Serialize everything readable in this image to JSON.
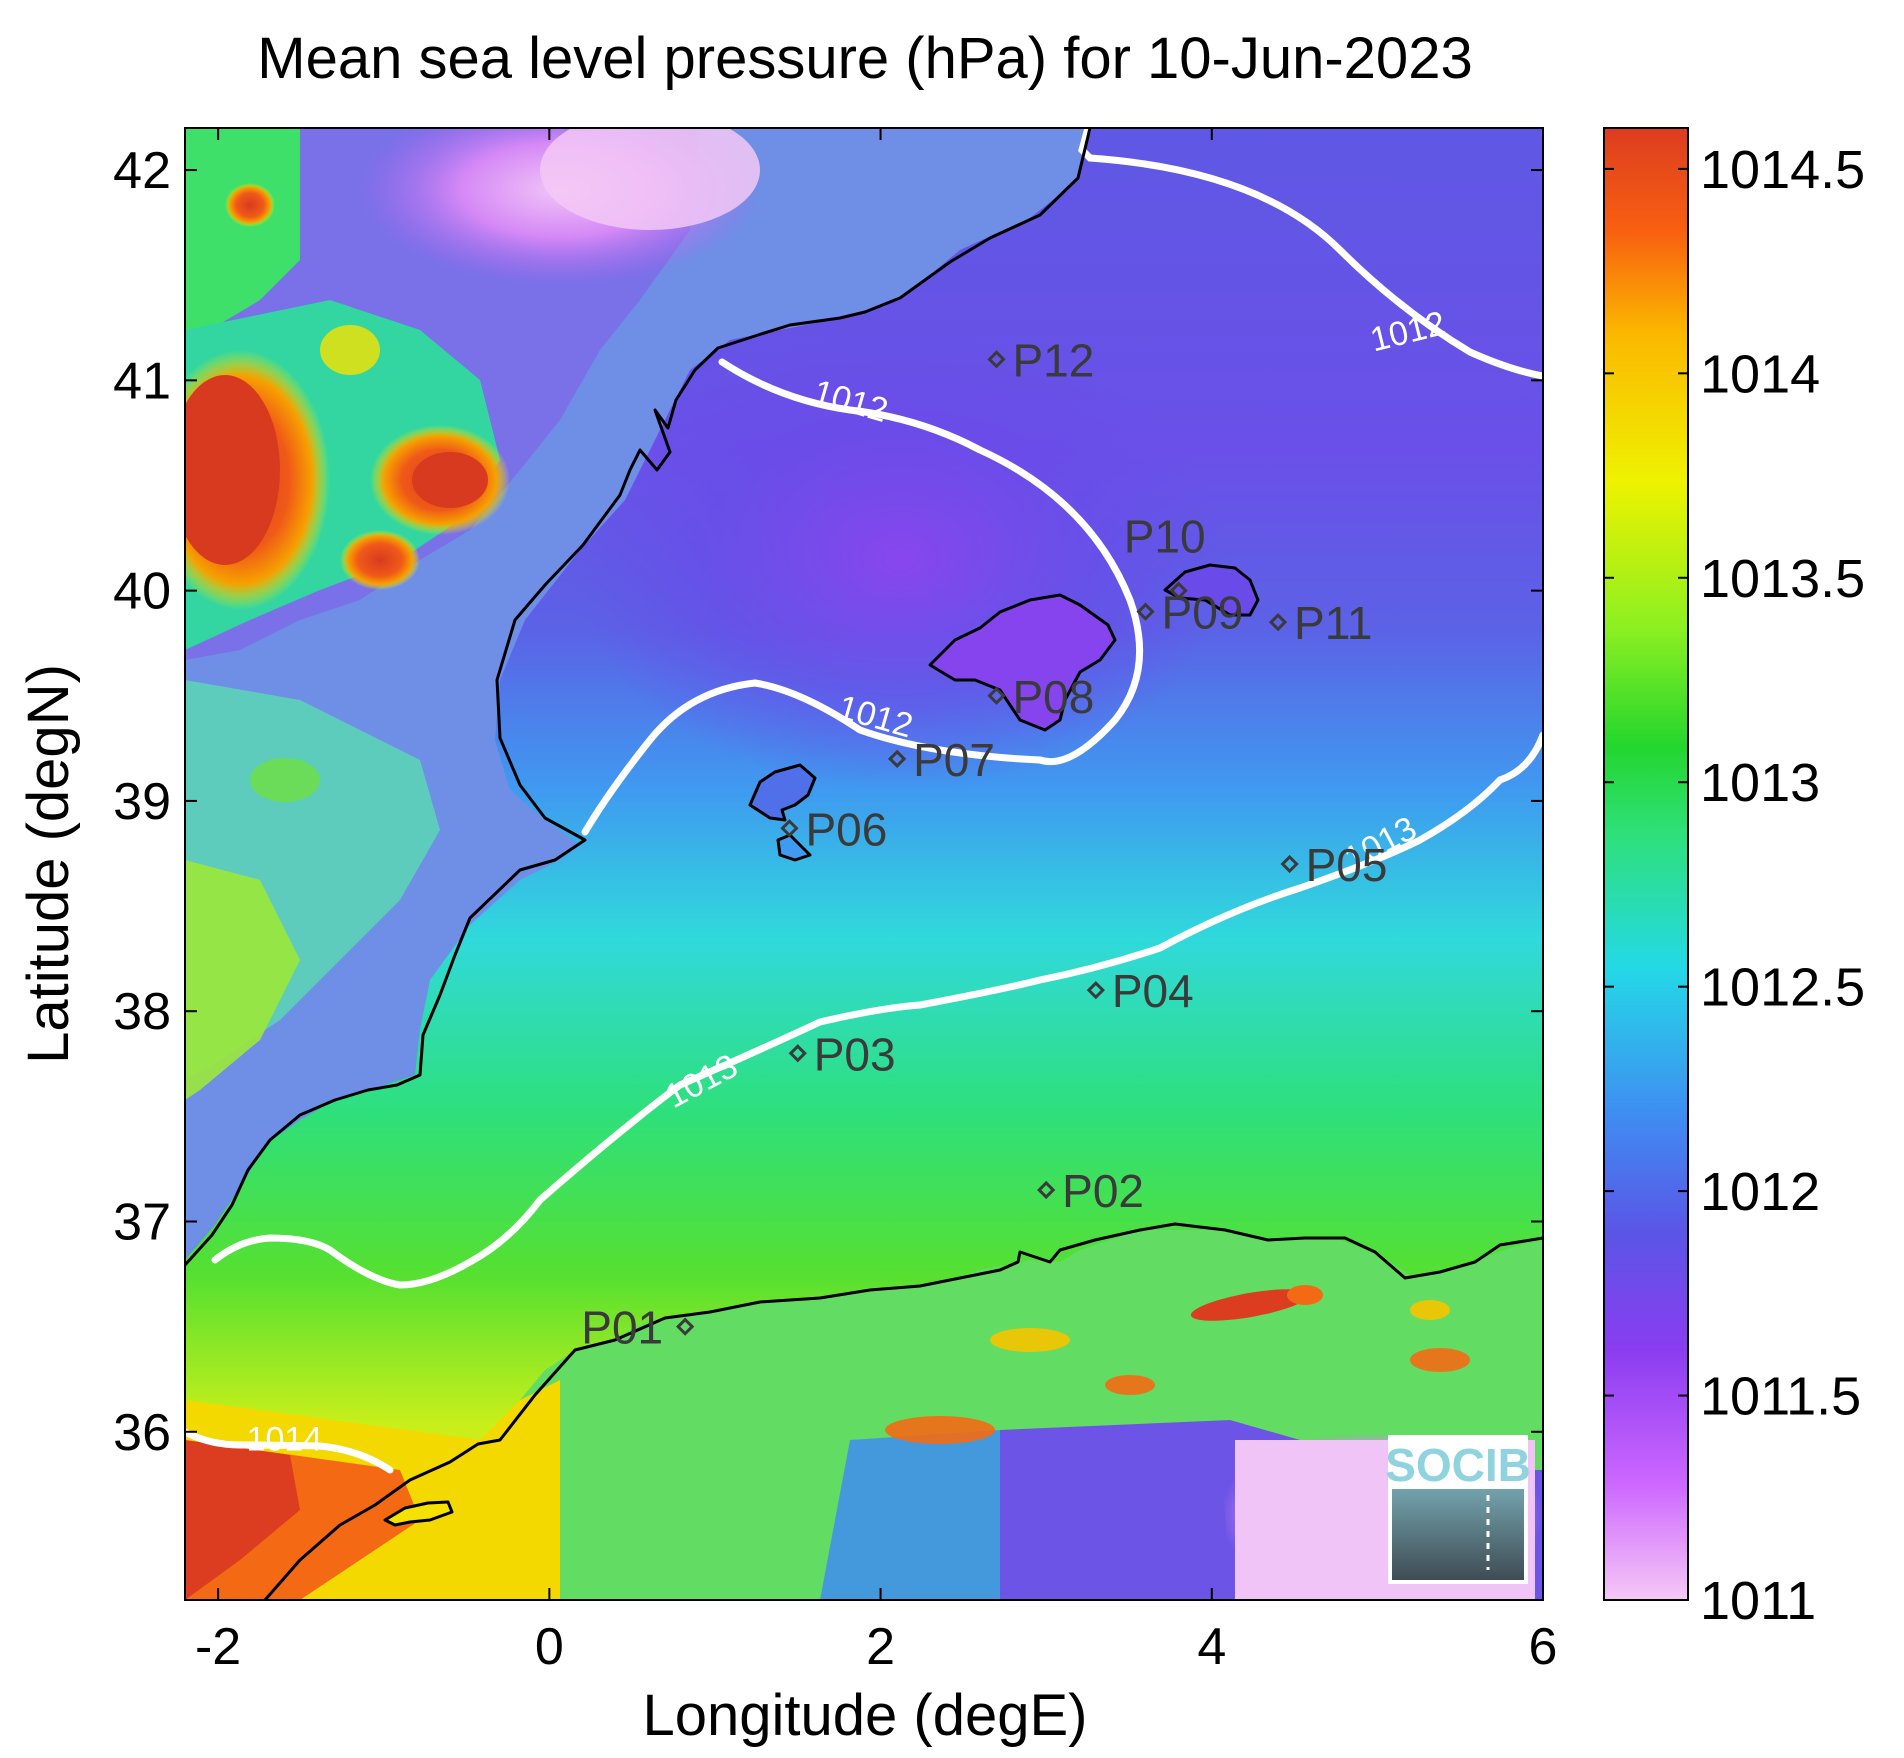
{
  "title": "Mean sea level pressure (hPa) for 10-Jun-2023",
  "xlabel": "Longitude (degE)",
  "ylabel": "Latitude (degN)",
  "colors": {
    "coast": "#000000",
    "contour": "#ffffff",
    "station": "#3a3a3a",
    "logo_accent": "#8fd3de"
  },
  "map": {
    "xlim": [
      -2.2,
      6.0
    ],
    "ylim": [
      35.2,
      42.2
    ],
    "x_ticks": [
      -2,
      0,
      2,
      4,
      6
    ],
    "x_tick_labels": [
      "-2",
      "0",
      "2",
      "4",
      "6"
    ],
    "y_ticks": [
      36,
      37,
      38,
      39,
      40,
      41,
      42
    ],
    "y_tick_labels": [
      "36",
      "37",
      "38",
      "39",
      "40",
      "41",
      "42"
    ]
  },
  "colorbar": {
    "min": 1011,
    "max": 1014.6,
    "ticks": [
      1011,
      1011.5,
      1012,
      1012.5,
      1013,
      1013.5,
      1014,
      1014.5
    ],
    "tick_labels": [
      "1011",
      "1011.5",
      "1012",
      "1012.5",
      "1013",
      "1013.5",
      "1014",
      "1014.5"
    ],
    "colormap": [
      "#f5c8f5",
      "#cc66ff",
      "#8a3df0",
      "#5b55e6",
      "#3f8df2",
      "#24d9e6",
      "#2ee07a",
      "#24d62e",
      "#8cef22",
      "#eef200",
      "#fbb800",
      "#f86010",
      "#dc3d20"
    ]
  },
  "contour_labels": [
    {
      "text": "1012",
      "lon": 1.8,
      "lat": 40.85
    },
    {
      "text": "1012",
      "lon": 5.2,
      "lat": 41.18
    },
    {
      "text": "1012",
      "lon": 1.95,
      "lat": 39.35
    },
    {
      "text": "1013",
      "lon": 5.05,
      "lat": 38.75
    },
    {
      "text": "1013",
      "lon": 0.95,
      "lat": 37.62
    },
    {
      "text": "1014",
      "lon": -1.6,
      "lat": 35.91
    }
  ],
  "stations": [
    {
      "name": "P01",
      "lon": 0.82,
      "lat": 36.5
    },
    {
      "name": "P02",
      "lon": 3.0,
      "lat": 37.15
    },
    {
      "name": "P03",
      "lon": 1.5,
      "lat": 37.8
    },
    {
      "name": "P04",
      "lon": 3.3,
      "lat": 38.1
    },
    {
      "name": "P05",
      "lon": 4.47,
      "lat": 38.7
    },
    {
      "name": "P06",
      "lon": 1.45,
      "lat": 38.87
    },
    {
      "name": "P07",
      "lon": 2.1,
      "lat": 39.2
    },
    {
      "name": "P08",
      "lon": 2.7,
      "lat": 39.5
    },
    {
      "name": "P09",
      "lon": 3.6,
      "lat": 39.9
    },
    {
      "name": "P10",
      "lon": 3.8,
      "lat": 40.0
    },
    {
      "name": "P11",
      "lon": 4.4,
      "lat": 39.85
    },
    {
      "name": "P12",
      "lon": 2.7,
      "lat": 41.1
    }
  ],
  "logo": {
    "text": "SOCIB"
  }
}
